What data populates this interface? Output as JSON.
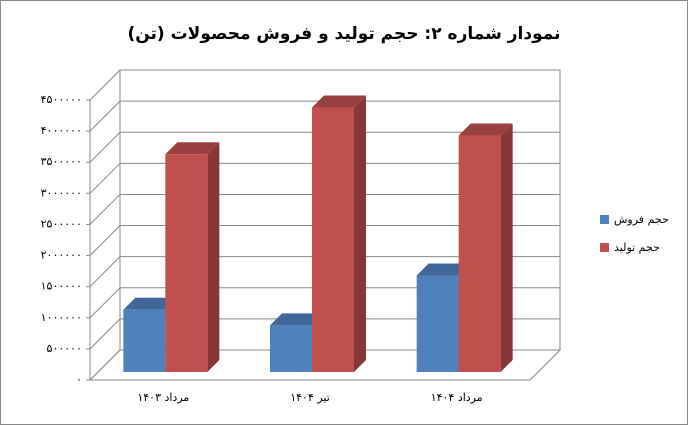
{
  "chart_data": {
    "type": "bar3d",
    "title": "نمودار شماره ۲: حجم تولید و فروش محصولات (تن)",
    "categories": [
      "مرداد ۱۴۰۳",
      "تیر ۱۴۰۴",
      "مرداد ۱۴۰۴"
    ],
    "series": [
      {
        "name": "حجم فروش",
        "color": "#4f81bd",
        "values": [
          1000000,
          750000,
          1550000
        ]
      },
      {
        "name": "حجم تولید",
        "color": "#c0504d",
        "values": [
          3500000,
          4250000,
          3800000
        ]
      }
    ],
    "ylim": [
      0,
      4500000
    ],
    "yticks": [
      {
        "value": 0,
        "label": "۰"
      },
      {
        "value": 500000,
        "label": "۵۰۰۰۰۰"
      },
      {
        "value": 1000000,
        "label": "۱۰۰۰۰۰۰"
      },
      {
        "value": 1500000,
        "label": "۱۵۰۰۰۰۰"
      },
      {
        "value": 2000000,
        "label": "۲۰۰۰۰۰۰"
      },
      {
        "value": 2500000,
        "label": "۲۵۰۰۰۰۰"
      },
      {
        "value": 3000000,
        "label": "۳۰۰۰۰۰۰"
      },
      {
        "value": 3500000,
        "label": "۳۵۰۰۰۰۰"
      },
      {
        "value": 4000000,
        "label": "۴۰۰۰۰۰۰"
      },
      {
        "value": 4500000,
        "label": "۴۵۰۰۰۰۰"
      }
    ],
    "grid": true,
    "legend": "right"
  }
}
